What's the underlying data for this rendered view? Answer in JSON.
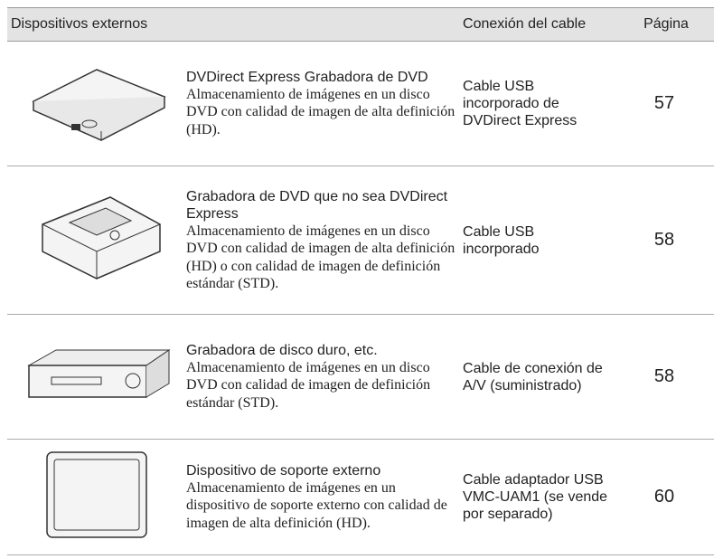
{
  "table": {
    "header": [
      "Dispositivos externos",
      "Conexión del cable",
      "Página"
    ],
    "rows": [
      {
        "title": "DVDirect Express Grabadora de DVD",
        "description": "Almacenamiento de imágenes en un disco DVD con calidad de imagen de alta definición (HD).",
        "cable": "Cable USB incorporado de DVDirect Express",
        "page": 57
      },
      {
        "title": "Grabadora de DVD que no sea DVDirect Express",
        "description": "Almacenamiento de imágenes en un disco DVD con calidad de imagen de alta definición (HD) o con calidad de imagen de definición estándar (STD).",
        "cable": "Cable USB incorporado",
        "page": 58
      },
      {
        "title": "Grabadora de disco duro, etc.",
        "description": "Almacenamiento de imágenes en un disco DVD con calidad de imagen de definición estándar (STD).",
        "cable": "Cable de conexión de A/V (suministrado)",
        "page": 58
      },
      {
        "title": "Dispositivo de soporte externo",
        "description": "Almacenamiento de imágenes en un dispositivo de soporte externo con calidad de imagen de alta definición (HD).",
        "cable": "Cable adaptador USB VMC-UAM1 (se vende por separado)",
        "page": 60
      }
    ]
  }
}
